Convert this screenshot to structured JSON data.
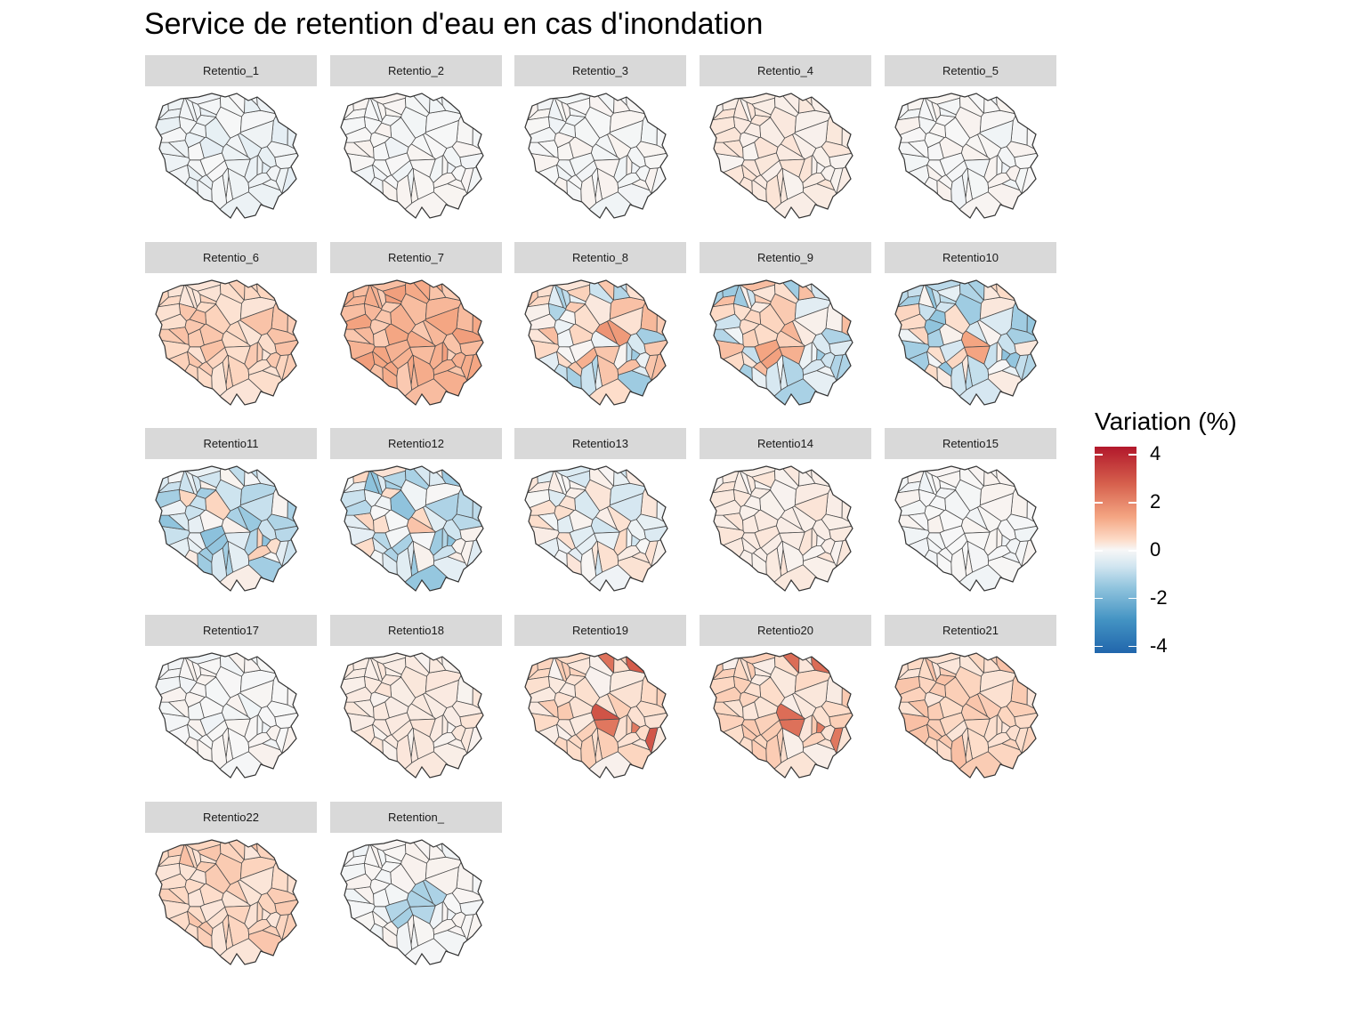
{
  "title": "Service de retention d'eau en cas d'inondation",
  "legend": {
    "title": "Variation (%)",
    "ticks": [
      "4",
      "2",
      "0",
      "-2",
      "-4"
    ],
    "tick_values": [
      4,
      2,
      0,
      -2,
      -4
    ],
    "range": [
      -4.3,
      4.3
    ],
    "colors": {
      "high": "#b2182b",
      "mid": "#f7f7f7",
      "low": "#2166ac"
    }
  },
  "chart_data": {
    "type": "heatmap",
    "layout": "small-multiples choropleth, 5 columns",
    "panels": [
      {
        "name": "Retentio_1",
        "tone": "neutral-slight-blue"
      },
      {
        "name": "Retentio_2",
        "tone": "neutral"
      },
      {
        "name": "Retentio_3",
        "tone": "neutral"
      },
      {
        "name": "Retentio_4",
        "tone": "slight-red"
      },
      {
        "name": "Retentio_5",
        "tone": "neutral"
      },
      {
        "name": "Retentio_6",
        "tone": "light-red"
      },
      {
        "name": "Retentio_7",
        "tone": "red"
      },
      {
        "name": "Retentio_8",
        "tone": "mixed"
      },
      {
        "name": "Retentio_9",
        "tone": "mixed"
      },
      {
        "name": "Retentio10",
        "tone": "mixed-blue"
      },
      {
        "name": "Retentio11",
        "tone": "mixed-blue"
      },
      {
        "name": "Retentio12",
        "tone": "mixed-blue"
      },
      {
        "name": "Retentio13",
        "tone": "mixed-light"
      },
      {
        "name": "Retentio14",
        "tone": "slight-red"
      },
      {
        "name": "Retentio15",
        "tone": "neutral"
      },
      {
        "name": "Retentio17",
        "tone": "neutral"
      },
      {
        "name": "Retentio18",
        "tone": "slight-red"
      },
      {
        "name": "Retentio19",
        "tone": "red-hotspots"
      },
      {
        "name": "Retentio20",
        "tone": "red-hotspots"
      },
      {
        "name": "Retentio21",
        "tone": "light-red"
      },
      {
        "name": "Retentio22",
        "tone": "light-red"
      },
      {
        "name": "Retention_",
        "tone": "blue-center"
      }
    ]
  }
}
